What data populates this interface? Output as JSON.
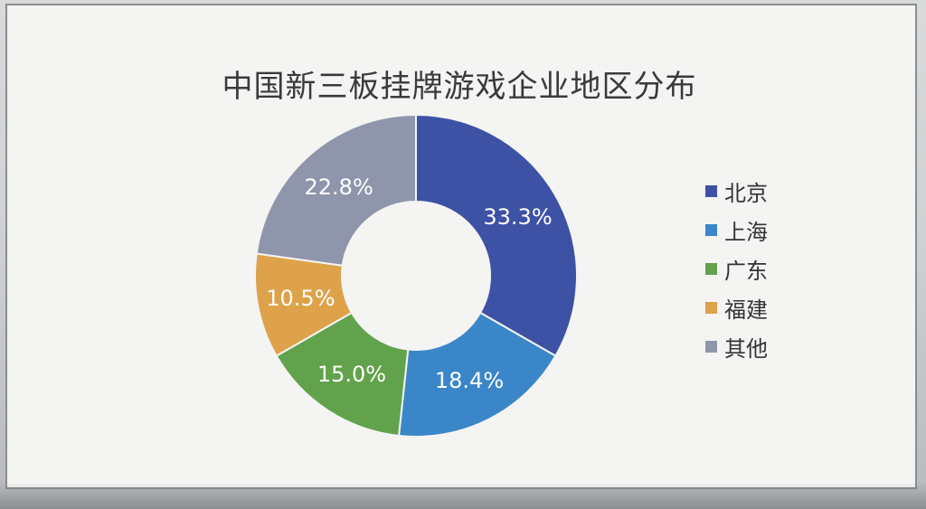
{
  "chart_data": {
    "type": "pie",
    "title": "中国新三板挂牌游戏企业地区分布",
    "donut": true,
    "categories": [
      "北京",
      "上海",
      "广东",
      "福建",
      "其他"
    ],
    "values": [
      33.3,
      18.4,
      15.0,
      10.5,
      22.8
    ],
    "labels": [
      "33.3%",
      "18.4%",
      "15.0%",
      "10.5%",
      "22.8%"
    ],
    "colors": [
      "#3d52a4",
      "#3b86c8",
      "#62a24c",
      "#dea24a",
      "#8f95aa"
    ],
    "legend_position": "right"
  }
}
